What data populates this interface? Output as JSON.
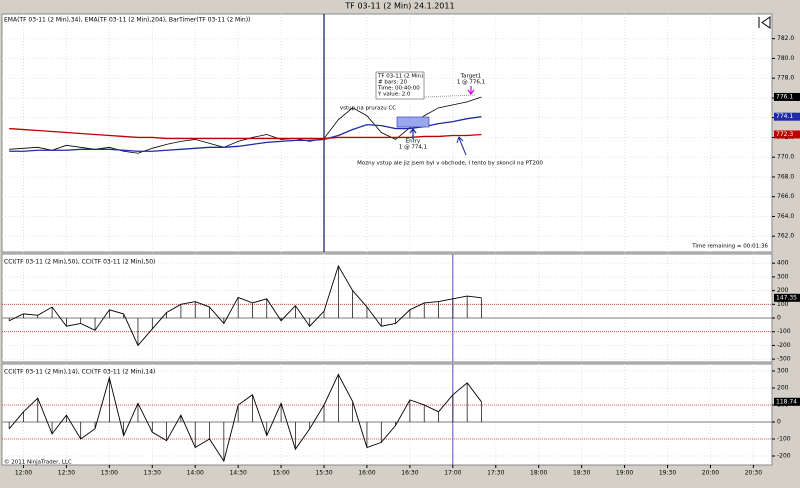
{
  "window_title": "TF 03-11 (2 Min)  24.1.2011",
  "copyright": "© 2011 NinjaTrader, LLC",
  "chart_data": [
    {
      "type": "line",
      "indicator_label": "EMA(TF 03-11 (2 Min),34), EMA(TF 03-11 (2 Min),204), BarTimer(TF 03-11 (2 Min))",
      "x": [
        "11:50",
        "12:00",
        "12:10",
        "12:20",
        "12:30",
        "12:40",
        "12:50",
        "13:00",
        "13:10",
        "13:20",
        "13:30",
        "13:40",
        "13:50",
        "14:00",
        "14:10",
        "14:20",
        "14:30",
        "14:40",
        "14:50",
        "15:00",
        "15:10",
        "15:20",
        "15:30",
        "15:40",
        "15:50",
        "16:00",
        "16:10",
        "16:20",
        "16:30",
        "16:40",
        "16:50",
        "17:00",
        "17:10",
        "17:20"
      ],
      "xlim": [
        "11:45",
        "20:43"
      ],
      "ylim": [
        760.4,
        784.5
      ],
      "yticks": [
        {
          "value": 782,
          "label": "782.0"
        },
        {
          "value": 780,
          "label": "780.0"
        },
        {
          "value": 778,
          "label": "778.0"
        },
        {
          "value": 776,
          "label": "776.0"
        },
        {
          "value": 774,
          "label": "774.0"
        },
        {
          "value": 772,
          "label": "772.0"
        },
        {
          "value": 770,
          "label": "770.0"
        },
        {
          "value": 768,
          "label": "768.0"
        },
        {
          "value": 766,
          "label": "766.0"
        },
        {
          "value": 764,
          "label": "764.0"
        },
        {
          "value": 762,
          "label": "762.0"
        }
      ],
      "series": [
        {
          "color": "#000000",
          "values": [
            770.8,
            770.9,
            771.0,
            770.7,
            771.2,
            771.0,
            770.8,
            771.0,
            770.6,
            770.4,
            770.9,
            771.3,
            771.6,
            771.8,
            771.4,
            771.0,
            771.6,
            772.0,
            772.3,
            771.8,
            771.9,
            771.6,
            771.9,
            773.8,
            775.0,
            774.2,
            772.5,
            771.8,
            773.0,
            774.2,
            775.0,
            775.3,
            775.6,
            776.1
          ]
        },
        {
          "color": "#1f2aa8",
          "values": [
            770.6,
            770.6,
            770.7,
            770.7,
            770.7,
            770.8,
            770.8,
            770.8,
            770.7,
            770.6,
            770.6,
            770.7,
            770.8,
            770.9,
            771.0,
            771.0,
            771.1,
            771.3,
            771.5,
            771.6,
            771.7,
            771.7,
            771.8,
            772.2,
            772.8,
            773.3,
            773.2,
            772.9,
            772.9,
            773.1,
            773.4,
            773.6,
            773.9,
            774.1
          ]
        },
        {
          "color": "#c00000",
          "values": [
            772.9,
            772.8,
            772.7,
            772.6,
            772.5,
            772.4,
            772.3,
            772.2,
            772.1,
            772.0,
            772.0,
            771.9,
            771.9,
            771.9,
            771.9,
            771.9,
            771.9,
            771.9,
            771.9,
            771.9,
            771.9,
            771.9,
            771.9,
            772.0,
            772.0,
            772.0,
            772.0,
            772.0,
            772.0,
            772.1,
            772.1,
            772.2,
            772.2,
            772.3
          ]
        }
      ],
      "session_break": "15:30",
      "annotations": [
        "vstup na prurazu CC",
        "Target1",
        "1 @ 776,1",
        "Entry",
        "1 @ 774,1",
        "Mozny vstup ale jiz jsem byl v obchode, I tento by skoncil na PT200"
      ],
      "info_box": [
        "TF 03-11 (2 Min)",
        "# bars:   20",
        "Time:     00:40:00",
        "Y value:  2.0"
      ],
      "time_remaining": "Time remaining = 00:01:36"
    },
    {
      "type": "bar",
      "indicator_label": "CCI(TF 03-11 (2 Min),50), CCI(TF 03-11 (2 Min),50)",
      "x": [
        "11:50",
        "12:00",
        "12:10",
        "12:20",
        "12:30",
        "12:40",
        "12:50",
        "13:00",
        "13:10",
        "13:20",
        "13:30",
        "13:40",
        "13:50",
        "14:00",
        "14:10",
        "14:20",
        "14:30",
        "14:40",
        "14:50",
        "15:00",
        "15:10",
        "15:20",
        "15:30",
        "15:40",
        "15:50",
        "16:00",
        "16:10",
        "16:20",
        "16:30",
        "16:40",
        "16:50",
        "17:00",
        "17:10",
        "17:20"
      ],
      "xlim": [
        "11:45",
        "20:43"
      ],
      "ylim": [
        -321,
        467
      ],
      "yticks": [
        400,
        300,
        200,
        100,
        0,
        -100,
        -200,
        -300
      ],
      "levels": [
        100,
        -100
      ],
      "marker": "17:00",
      "series": [
        {
          "color": "#000000",
          "values": [
            -20,
            30,
            20,
            80,
            -60,
            -40,
            -90,
            60,
            30,
            -200,
            -80,
            40,
            100,
            120,
            80,
            -40,
            150,
            110,
            140,
            -20,
            90,
            -60,
            50,
            380,
            200,
            80,
            -60,
            -40,
            60,
            110,
            120,
            140,
            160,
            147.35
          ]
        }
      ]
    },
    {
      "type": "bar",
      "indicator_label": "CCI(TF 03-11 (2 Min),14), CCI(TF 03-11 (2 Min),14)",
      "x": [
        "11:50",
        "12:00",
        "12:10",
        "12:20",
        "12:30",
        "12:40",
        "12:50",
        "13:00",
        "13:10",
        "13:20",
        "13:30",
        "13:40",
        "13:50",
        "14:00",
        "14:10",
        "14:20",
        "14:30",
        "14:40",
        "14:50",
        "15:00",
        "15:10",
        "15:20",
        "15:30",
        "15:40",
        "15:50",
        "16:00",
        "16:10",
        "16:20",
        "16:30",
        "16:40",
        "16:50",
        "17:00",
        "17:10",
        "17:20"
      ],
      "xlim": [
        "11:45",
        "20:43"
      ],
      "ylim": [
        -253,
        341
      ],
      "yticks": [
        300,
        200,
        100,
        0,
        -100,
        -200
      ],
      "levels": [
        100,
        -100
      ],
      "marker": "17:00",
      "xticks": [
        "12:00",
        "12:30",
        "13:00",
        "13:30",
        "14:00",
        "14:30",
        "15:00",
        "15:30",
        "16:00",
        "16:30",
        "17:00",
        "17:30",
        "18:00",
        "18:30",
        "19:00",
        "19:30",
        "20:00",
        "20:30"
      ],
      "series": [
        {
          "color": "#000000",
          "values": [
            -40,
            60,
            140,
            -70,
            40,
            -100,
            -40,
            260,
            -80,
            110,
            -60,
            -110,
            40,
            -150,
            -100,
            -230,
            100,
            160,
            -80,
            110,
            -160,
            -40,
            100,
            280,
            120,
            -150,
            -120,
            -20,
            130,
            100,
            60,
            160,
            230,
            118.74
          ]
        }
      ]
    }
  ]
}
